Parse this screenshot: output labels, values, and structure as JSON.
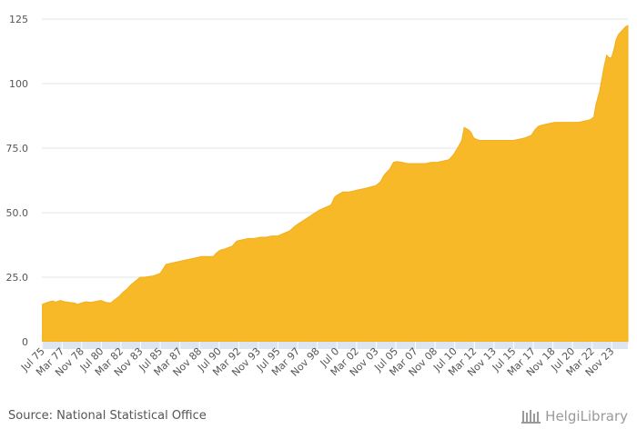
{
  "chart_data": {
    "type": "area",
    "color": "#f7b928",
    "axis_strip_color": "#dde5f0",
    "grid": true,
    "ylim": [
      0,
      125
    ],
    "yticks": [
      "0",
      "25.0",
      "50.0",
      "75.0",
      "100",
      "125"
    ],
    "ytick_values": [
      0,
      25,
      50,
      75,
      100,
      125
    ],
    "xticks": [
      "Jul 75",
      "Mar 77",
      "Nov 78",
      "Jul 80",
      "Mar 82",
      "Nov 83",
      "Jul 85",
      "Mar 87",
      "Nov 88",
      "Jul 90",
      "Mar 92",
      "Nov 93",
      "Jul 95",
      "Mar 97",
      "Nov 98",
      "Jul 0",
      "Mar 02",
      "Nov 03",
      "Jul 05",
      "Mar 07",
      "Nov 08",
      "Jul 10",
      "Mar 12",
      "Nov 13",
      "Jul 15",
      "Mar 17",
      "Nov 18",
      "Jul 20",
      "Mar 22",
      "Nov 23"
    ],
    "xtick_values": [
      1975.5,
      1977.167,
      1978.833,
      1980.5,
      1982.167,
      1983.833,
      1985.5,
      1987.167,
      1988.833,
      1990.5,
      1992.167,
      1993.833,
      1995.5,
      1997.167,
      1998.833,
      2000.5,
      2002.167,
      2003.833,
      2005.5,
      2007.167,
      2008.833,
      2010.5,
      2012.167,
      2013.833,
      2015.5,
      2017.167,
      2018.833,
      2020.5,
      2022.167,
      2023.833
    ],
    "xlim": [
      1975.45,
      2025.2
    ],
    "series": [
      {
        "x": [
          1975.5,
          1975.8,
          1976.1,
          1976.4,
          1976.6,
          1977.0,
          1977.4,
          1977.8,
          1978.2,
          1978.5,
          1978.8,
          1979.2,
          1979.6,
          1979.9,
          1980.2,
          1980.5,
          1980.9,
          1981.3,
          1981.7,
          1982.0,
          1982.3,
          1982.7,
          1983.0,
          1983.4,
          1983.8,
          1984.2,
          1984.6,
          1984.9,
          1985.2,
          1985.5,
          1986.0,
          1986.5,
          1987.0,
          1987.5,
          1988.0,
          1988.5,
          1989.0,
          1989.5,
          1990.0,
          1990.3,
          1990.6,
          1991.0,
          1991.3,
          1991.6,
          1992.0,
          1992.5,
          1993.0,
          1993.5,
          1994.0,
          1994.5,
          1995.0,
          1995.5,
          1996.0,
          1996.5,
          1997.0,
          1997.5,
          1998.0,
          1998.5,
          1999.0,
          1999.5,
          2000.0,
          2000.3,
          2000.6,
          2001.0,
          2001.5,
          2002.0,
          2002.5,
          2003.0,
          2003.4,
          2003.8,
          2004.2,
          2004.5,
          2004.8,
          2005.0,
          2005.3,
          2005.6,
          2006.0,
          2006.5,
          2007.0,
          2007.5,
          2008.0,
          2008.5,
          2009.0,
          2009.5,
          2010.0,
          2010.4,
          2010.8,
          2011.1,
          2011.3,
          2011.5,
          2011.7,
          2011.9,
          2012.1,
          2012.3,
          2012.6,
          2013.0,
          2013.5,
          2014.0,
          2014.5,
          2015.0,
          2015.5,
          2016.0,
          2016.5,
          2017.0,
          2017.3,
          2017.6,
          2018.0,
          2018.5,
          2019.0,
          2019.5,
          2020.0,
          2020.5,
          2021.0,
          2021.5,
          2022.0,
          2022.3,
          2022.5,
          2022.8,
          2023.0,
          2023.2,
          2023.4,
          2023.6,
          2023.8,
          2024.0,
          2024.2,
          2024.4,
          2024.6,
          2024.8,
          2025.0,
          2025.2
        ],
        "y": [
          14.5,
          15.0,
          15.5,
          15.8,
          15.3,
          16.0,
          15.5,
          15.2,
          15.0,
          14.5,
          15.0,
          15.5,
          15.2,
          15.5,
          15.8,
          16.0,
          15.2,
          15.0,
          16.5,
          17.5,
          19.0,
          20.5,
          22.0,
          23.5,
          25.0,
          25.0,
          25.3,
          25.5,
          26.0,
          26.5,
          30.0,
          30.5,
          31.0,
          31.5,
          32.0,
          32.5,
          33.0,
          33.0,
          33.0,
          34.5,
          35.5,
          36.0,
          36.5,
          37.0,
          39.0,
          39.5,
          40.0,
          40.0,
          40.5,
          40.5,
          41.0,
          41.0,
          42.0,
          43.0,
          45.0,
          46.5,
          48.0,
          49.5,
          51.0,
          52.0,
          53.0,
          56.0,
          57.0,
          58.0,
          58.0,
          58.5,
          59.0,
          59.5,
          60.0,
          60.5,
          62.0,
          64.5,
          66.0,
          67.0,
          69.5,
          69.8,
          69.5,
          69.0,
          69.0,
          69.0,
          69.0,
          69.5,
          69.5,
          70.0,
          70.5,
          72.5,
          75.5,
          78.0,
          83.0,
          82.5,
          82.0,
          81.0,
          79.0,
          78.5,
          78.0,
          78.0,
          78.0,
          78.0,
          78.0,
          78.0,
          78.0,
          78.5,
          79.0,
          80.0,
          82.0,
          83.5,
          84.0,
          84.5,
          85.0,
          85.0,
          85.0,
          85.0,
          85.0,
          85.5,
          86.0,
          87.0,
          92.0,
          97.0,
          102.0,
          107.0,
          111.0,
          110.0,
          110.0,
          113.0,
          117.0,
          119.0,
          120.0,
          121.0,
          122.0,
          122.5
        ]
      }
    ]
  },
  "footer": {
    "source": "Source: National Statistical Office",
    "logo": "HelgiLibrary"
  }
}
